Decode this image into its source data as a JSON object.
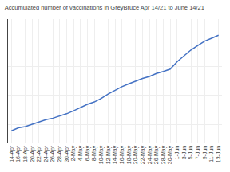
{
  "chart_data": {
    "type": "line",
    "title": "Accumulated number of vaccinations in GreyBruce Apr 14/21 to June 14/21",
    "categories": [
      "14-Apr",
      "16-Apr",
      "18-Apr",
      "20-Apr",
      "22-Apr",
      "24-Apr",
      "26-Apr",
      "28-Apr",
      "30-Apr",
      "2-May",
      "4-May",
      "6-May",
      "8-May",
      "10-May",
      "12-May",
      "14-May",
      "16-May",
      "18-May",
      "20-May",
      "22-May",
      "24-May",
      "26-May",
      "28-May",
      "30-May",
      "1-Jun",
      "3-Jun",
      "5-Jun",
      "7-Jun",
      "9-Jun",
      "11-Jun",
      "13-Jun"
    ],
    "values": [
      18000,
      19000,
      19400,
      20200,
      21000,
      21800,
      22300,
      23000,
      23800,
      24800,
      26000,
      27000,
      27800,
      29000,
      30500,
      31800,
      33000,
      34000,
      35000,
      35800,
      36500,
      37500,
      38200,
      39000,
      41500,
      43500,
      45500,
      47000,
      48500,
      49500,
      50500
    ],
    "color": "#4472C4",
    "ylim": [
      14000,
      56000
    ],
    "yticks": [
      20000,
      30000,
      40000,
      50000
    ],
    "grid": true,
    "tick_labels": "x"
  }
}
